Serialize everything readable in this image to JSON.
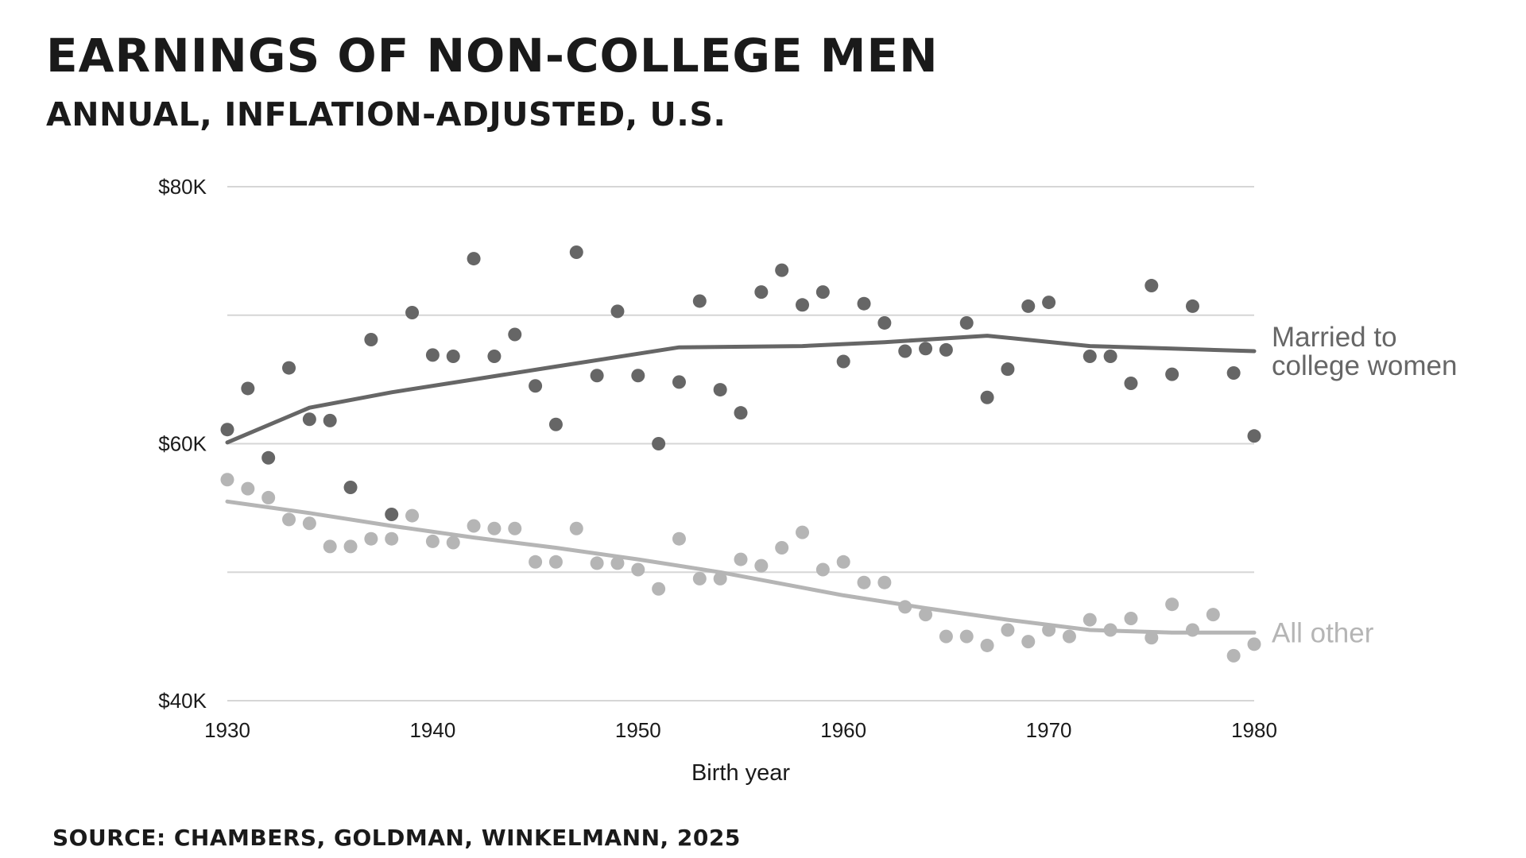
{
  "header": {
    "title": "EARNINGS OF NON-COLLEGE MEN",
    "subtitle": "ANNUAL, INFLATION-ADJUSTED, U.S.",
    "source": "SOURCE: CHAMBERS, GOLDMAN, WINKELMANN, 2025"
  },
  "chart_data": {
    "type": "scatter",
    "title": "EARNINGS OF NON-COLLEGE MEN",
    "subtitle": "ANNUAL, INFLATION-ADJUSTED, U.S.",
    "xlabel": "Birth year",
    "ylabel": "",
    "xlim": [
      1930,
      1980
    ],
    "ylim": [
      40,
      80
    ],
    "x_ticks": [
      1930,
      1940,
      1950,
      1960,
      1970,
      1980
    ],
    "x_tick_labels": [
      "1930",
      "1940",
      "1950",
      "1960",
      "1970",
      "1980"
    ],
    "y_ticks": [
      40,
      50,
      60,
      70,
      80
    ],
    "y_tick_labels": [
      "$40K",
      "",
      "$60K",
      "",
      "$80K"
    ],
    "grid": true,
    "series": [
      {
        "name": "Married to college women",
        "label_lines": [
          "Married to",
          "college women"
        ],
        "color": "#666666",
        "points": [
          [
            1930,
            61.1
          ],
          [
            1931,
            64.3
          ],
          [
            1932,
            58.9
          ],
          [
            1933,
            65.9
          ],
          [
            1934,
            61.9
          ],
          [
            1935,
            61.8
          ],
          [
            1936,
            56.6
          ],
          [
            1937,
            68.1
          ],
          [
            1938,
            54.5
          ],
          [
            1939,
            70.2
          ],
          [
            1940,
            66.9
          ],
          [
            1941,
            66.8
          ],
          [
            1942,
            74.4
          ],
          [
            1943,
            66.8
          ],
          [
            1944,
            68.5
          ],
          [
            1945,
            64.5
          ],
          [
            1946,
            61.5
          ],
          [
            1947,
            74.9
          ],
          [
            1948,
            65.3
          ],
          [
            1949,
            70.3
          ],
          [
            1950,
            65.3
          ],
          [
            1951,
            60.0
          ],
          [
            1952,
            64.8
          ],
          [
            1953,
            71.1
          ],
          [
            1954,
            64.2
          ],
          [
            1955,
            62.4
          ],
          [
            1956,
            71.8
          ],
          [
            1957,
            73.5
          ],
          [
            1958,
            70.8
          ],
          [
            1959,
            71.8
          ],
          [
            1960,
            66.4
          ],
          [
            1961,
            70.9
          ],
          [
            1962,
            69.4
          ],
          [
            1963,
            67.2
          ],
          [
            1964,
            67.4
          ],
          [
            1965,
            67.3
          ],
          [
            1966,
            69.4
          ],
          [
            1967,
            63.6
          ],
          [
            1968,
            65.8
          ],
          [
            1969,
            70.7
          ],
          [
            1970,
            71.0
          ],
          [
            1972,
            66.8
          ],
          [
            1973,
            66.8
          ],
          [
            1974,
            64.7
          ],
          [
            1975,
            72.3
          ],
          [
            1976,
            65.4
          ],
          [
            1977,
            70.7
          ],
          [
            1979,
            65.5
          ],
          [
            1980,
            60.6
          ]
        ],
        "trend": [
          [
            1930,
            60.1
          ],
          [
            1934,
            62.8
          ],
          [
            1938,
            64.0
          ],
          [
            1942,
            65.0
          ],
          [
            1946,
            66.0
          ],
          [
            1952,
            67.5
          ],
          [
            1958,
            67.6
          ],
          [
            1962,
            67.9
          ],
          [
            1967,
            68.4
          ],
          [
            1972,
            67.6
          ],
          [
            1976,
            67.4
          ],
          [
            1980,
            67.2
          ]
        ]
      },
      {
        "name": "All other",
        "label_lines": [
          "All other"
        ],
        "color": "#b5b5b5",
        "points": [
          [
            1930,
            57.2
          ],
          [
            1931,
            56.5
          ],
          [
            1932,
            55.8
          ],
          [
            1933,
            54.1
          ],
          [
            1934,
            53.8
          ],
          [
            1935,
            52.0
          ],
          [
            1936,
            52.0
          ],
          [
            1937,
            52.6
          ],
          [
            1938,
            52.6
          ],
          [
            1939,
            54.4
          ],
          [
            1940,
            52.4
          ],
          [
            1941,
            52.3
          ],
          [
            1942,
            53.6
          ],
          [
            1943,
            53.4
          ],
          [
            1944,
            53.4
          ],
          [
            1945,
            50.8
          ],
          [
            1946,
            50.8
          ],
          [
            1947,
            53.4
          ],
          [
            1948,
            50.7
          ],
          [
            1949,
            50.7
          ],
          [
            1950,
            50.2
          ],
          [
            1951,
            48.7
          ],
          [
            1952,
            52.6
          ],
          [
            1953,
            49.5
          ],
          [
            1954,
            49.5
          ],
          [
            1955,
            51.0
          ],
          [
            1956,
            50.5
          ],
          [
            1957,
            51.9
          ],
          [
            1958,
            53.1
          ],
          [
            1959,
            50.2
          ],
          [
            1960,
            50.8
          ],
          [
            1961,
            49.2
          ],
          [
            1962,
            49.2
          ],
          [
            1963,
            47.3
          ],
          [
            1964,
            46.7
          ],
          [
            1965,
            45.0
          ],
          [
            1966,
            45.0
          ],
          [
            1967,
            44.3
          ],
          [
            1968,
            45.5
          ],
          [
            1969,
            44.6
          ],
          [
            1970,
            45.5
          ],
          [
            1971,
            45.0
          ],
          [
            1972,
            46.3
          ],
          [
            1973,
            45.5
          ],
          [
            1974,
            46.4
          ],
          [
            1975,
            44.9
          ],
          [
            1976,
            47.5
          ],
          [
            1977,
            45.5
          ],
          [
            1978,
            46.7
          ],
          [
            1979,
            43.5
          ],
          [
            1980,
            44.4
          ]
        ],
        "trend": [
          [
            1930,
            55.5
          ],
          [
            1934,
            54.6
          ],
          [
            1938,
            53.6
          ],
          [
            1942,
            52.7
          ],
          [
            1946,
            51.9
          ],
          [
            1950,
            51.0
          ],
          [
            1954,
            50.0
          ],
          [
            1958,
            48.8
          ],
          [
            1960,
            48.2
          ],
          [
            1964,
            47.2
          ],
          [
            1968,
            46.3
          ],
          [
            1972,
            45.5
          ],
          [
            1976,
            45.3
          ],
          [
            1980,
            45.3
          ]
        ]
      }
    ]
  }
}
